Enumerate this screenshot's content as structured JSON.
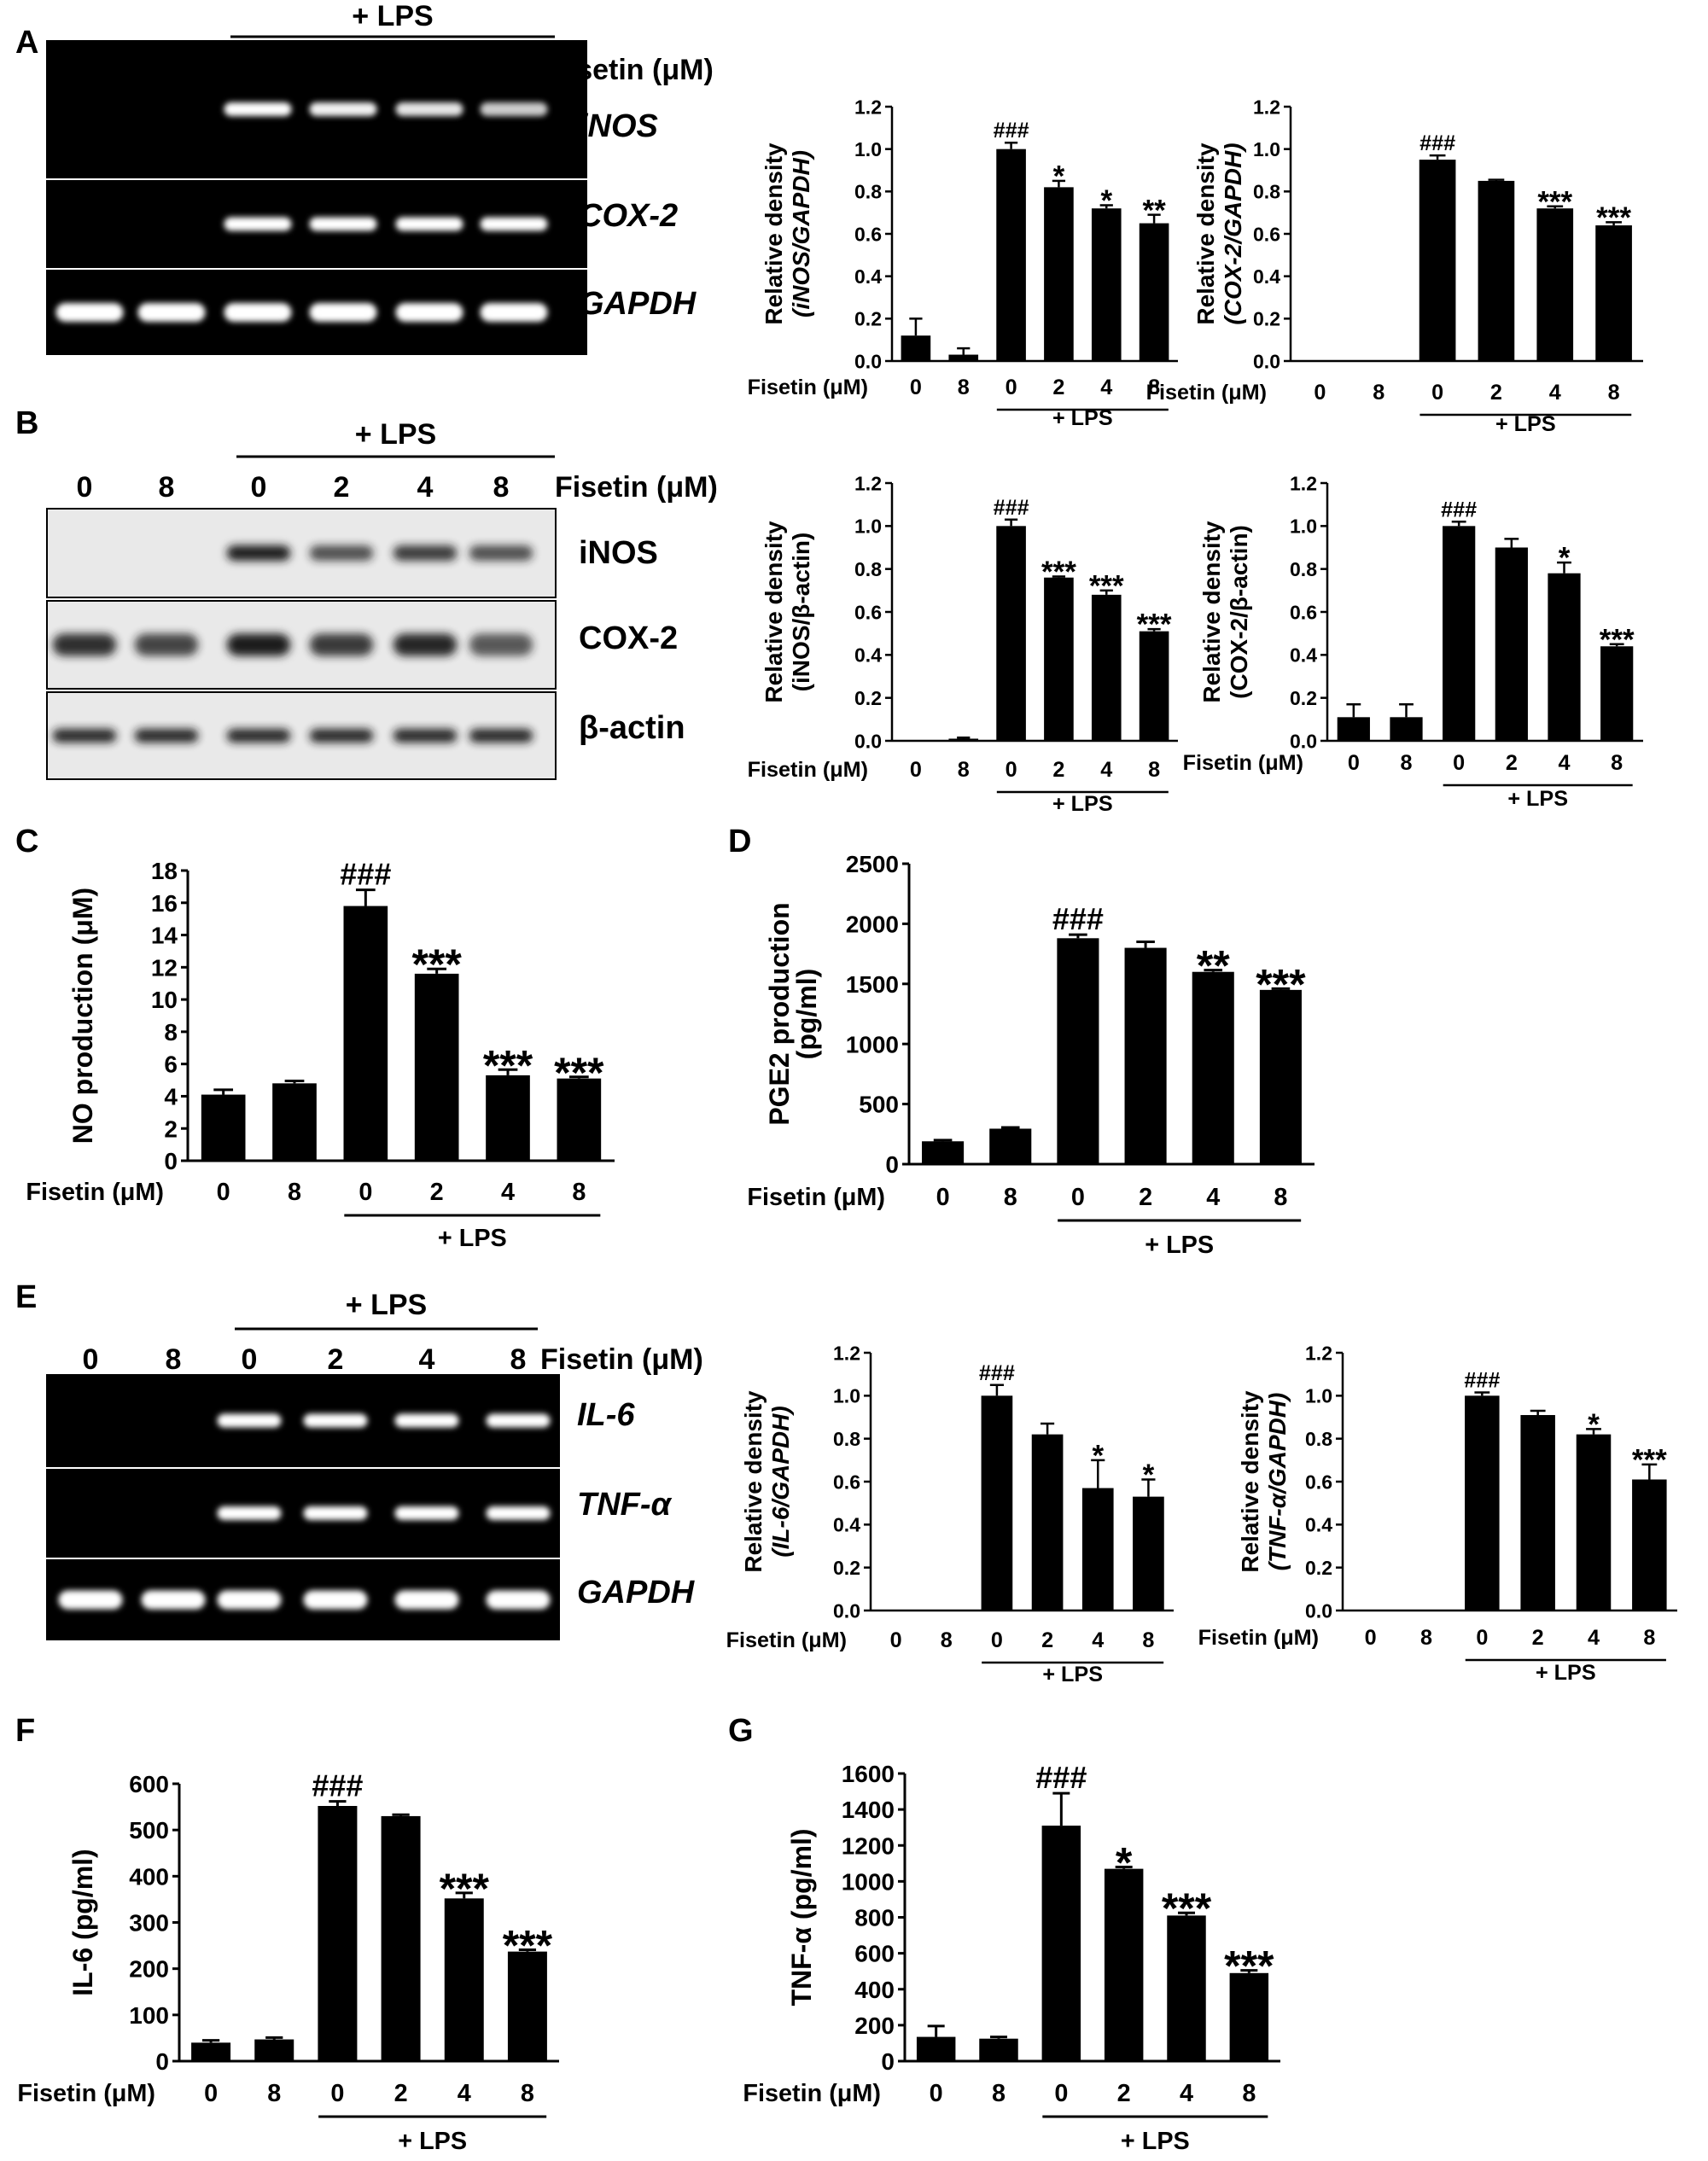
{
  "x_axis_name": "Fisetin (μM)",
  "lps_label": "+ LPS",
  "doses": [
    "0",
    "8",
    "0",
    "2",
    "4",
    "8"
  ],
  "panel_letters": [
    "A",
    "B",
    "C",
    "D",
    "E",
    "F",
    "G"
  ],
  "gels": [
    {
      "panel": "A",
      "style": "dark",
      "bands": [
        "iNOS",
        "COX-2",
        "GAPDH"
      ],
      "italic": true
    },
    {
      "panel": "B",
      "style": "light",
      "bands": [
        "iNOS",
        "COX-2",
        "β-actin"
      ],
      "italic": false
    },
    {
      "panel": "E",
      "style": "dark",
      "bands": [
        "IL-6",
        "TNF-α",
        "GAPDH"
      ],
      "italic": true
    }
  ],
  "chart_data": [
    {
      "id": "A1",
      "type": "bar",
      "ylabel_line1": "Relative density",
      "ylabel_line2": "(iNOS/GAPDH)",
      "ylim": [
        0,
        1.2
      ],
      "yticks": [
        "0.0",
        "0.2",
        "0.4",
        "0.6",
        "0.8",
        "1.0",
        "1.2"
      ],
      "values": [
        0.12,
        0.03,
        1.0,
        0.82,
        0.72,
        0.65
      ],
      "errors": [
        0.08,
        0.03,
        0.03,
        0.03,
        0.015,
        0.04
      ],
      "annotations": [
        "",
        "",
        "###",
        "*",
        "*",
        "**"
      ]
    },
    {
      "id": "A2",
      "type": "bar",
      "ylabel_line1": "Relative density",
      "ylabel_line2": "(COX-2/GAPDH)",
      "ylim": [
        0,
        1.2
      ],
      "yticks": [
        "0.0",
        "0.2",
        "0.4",
        "0.6",
        "0.8",
        "1.0",
        "1.2"
      ],
      "values": [
        0,
        0,
        0.95,
        0.85,
        0.72,
        0.64
      ],
      "errors": [
        0,
        0,
        0.02,
        0.005,
        0.01,
        0.015
      ],
      "annotations": [
        "",
        "",
        "###",
        "",
        "***",
        "***"
      ]
    },
    {
      "id": "B1",
      "type": "bar",
      "ylabel_line1": "Relative density",
      "ylabel_line2": "(iNOS/β-actin)",
      "ylim": [
        0,
        1.2
      ],
      "yticks": [
        "0.0",
        "0.2",
        "0.4",
        "0.6",
        "0.8",
        "1.0",
        "1.2"
      ],
      "values": [
        0,
        0.01,
        1.0,
        0.76,
        0.68,
        0.51
      ],
      "errors": [
        0,
        0.005,
        0.03,
        0.005,
        0.02,
        0.01
      ],
      "annotations": [
        "",
        "",
        "###",
        "***",
        "***",
        "***"
      ]
    },
    {
      "id": "B2",
      "type": "bar",
      "ylabel_line1": "Relative density",
      "ylabel_line2": "(COX-2/β-actin)",
      "ylim": [
        0,
        1.2
      ],
      "yticks": [
        "0.0",
        "0.2",
        "0.4",
        "0.6",
        "0.8",
        "1.0",
        "1.2"
      ],
      "values": [
        0.11,
        0.11,
        1.0,
        0.9,
        0.78,
        0.44
      ],
      "errors": [
        0.06,
        0.06,
        0.02,
        0.04,
        0.05,
        0.01
      ],
      "annotations": [
        "",
        "",
        "###",
        "",
        "*",
        "***"
      ]
    },
    {
      "id": "C",
      "type": "bar",
      "ylabel_line1": "NO production (μM)",
      "ylabel_line2": "",
      "ylim": [
        0,
        18
      ],
      "yticks": [
        "0",
        "2",
        "4",
        "6",
        "8",
        "10",
        "12",
        "14",
        "16",
        "18"
      ],
      "values": [
        4.1,
        4.8,
        15.8,
        11.6,
        5.3,
        5.1
      ],
      "errors": [
        0.3,
        0.15,
        1.0,
        0.3,
        0.35,
        0.1
      ],
      "annotations": [
        "",
        "",
        "###",
        "***",
        "***",
        "***"
      ]
    },
    {
      "id": "D",
      "type": "bar",
      "ylabel_line1": "PGE2 production",
      "ylabel_line2": "(pg/ml)",
      "ylim": [
        0,
        2500
      ],
      "yticks": [
        "0",
        "500",
        "1000",
        "1500",
        "2000",
        "2500"
      ],
      "values": [
        190,
        295,
        1880,
        1800,
        1600,
        1450
      ],
      "errors": [
        10,
        10,
        30,
        50,
        15,
        10
      ],
      "annotations": [
        "",
        "",
        "###",
        "",
        "**",
        "***"
      ]
    },
    {
      "id": "E1",
      "type": "bar",
      "ylabel_line1": "Relative density",
      "ylabel_line2": "(IL-6/GAPDH)",
      "ylim": [
        0,
        1.2
      ],
      "yticks": [
        "0.0",
        "0.2",
        "0.4",
        "0.6",
        "0.8",
        "1.0",
        "1.2"
      ],
      "values": [
        0,
        0,
        1.0,
        0.82,
        0.57,
        0.53
      ],
      "errors": [
        0,
        0,
        0.05,
        0.05,
        0.13,
        0.08
      ],
      "annotations": [
        "",
        "",
        "###",
        "",
        "*",
        "*"
      ]
    },
    {
      "id": "E2",
      "type": "bar",
      "ylabel_line1": "Relative density",
      "ylabel_line2": "(TNF-α/GAPDH)",
      "ylim": [
        0,
        1.2
      ],
      "yticks": [
        "0.0",
        "0.2",
        "0.4",
        "0.6",
        "0.8",
        "1.0",
        "1.2"
      ],
      "values": [
        0,
        0,
        1.0,
        0.91,
        0.82,
        0.61
      ],
      "errors": [
        0,
        0,
        0.015,
        0.02,
        0.025,
        0.07
      ],
      "annotations": [
        "",
        "",
        "###",
        "",
        "*",
        "***"
      ]
    },
    {
      "id": "F",
      "type": "bar",
      "ylabel_line1": "IL-6 (pg/ml)",
      "ylabel_line2": "",
      "ylim": [
        0,
        600
      ],
      "yticks": [
        "0",
        "100",
        "200",
        "300",
        "400",
        "500",
        "600"
      ],
      "values": [
        40,
        47,
        552,
        530,
        352,
        237
      ],
      "errors": [
        5,
        4,
        10,
        3,
        12,
        4
      ],
      "annotations": [
        "",
        "",
        "###",
        "",
        "***",
        "***"
      ]
    },
    {
      "id": "G",
      "type": "bar",
      "ylabel_line1": "TNF-α (pg/ml)",
      "ylabel_line2": "",
      "ylim": [
        0,
        1600
      ],
      "yticks": [
        "0",
        "200",
        "400",
        "600",
        "800",
        "1000",
        "1200",
        "1400",
        "1600"
      ],
      "values": [
        135,
        125,
        1310,
        1070,
        810,
        490
      ],
      "errors": [
        60,
        10,
        180,
        10,
        15,
        15
      ],
      "annotations": [
        "",
        "",
        "###",
        "*",
        "***",
        "***"
      ]
    }
  ]
}
